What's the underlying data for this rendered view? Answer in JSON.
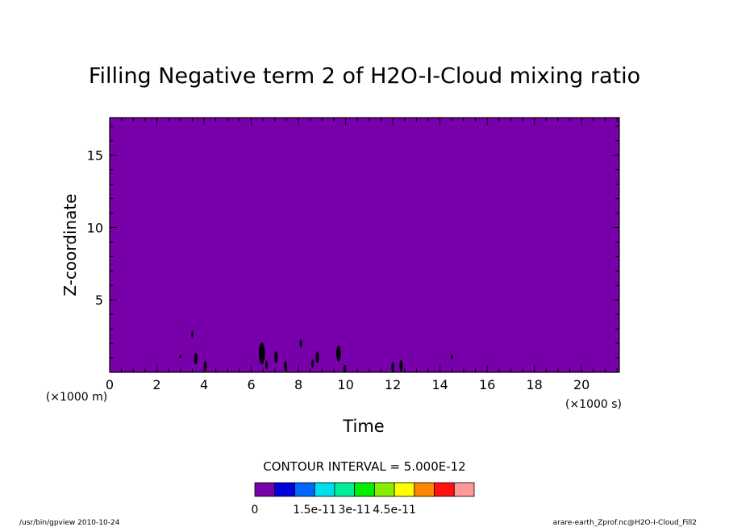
{
  "chart_data": {
    "type": "heatmap",
    "title": "Filling Negative term 2 of H2O-I-Cloud mixing ratio",
    "xlabel": "Time",
    "ylabel": "Z-coordinate",
    "x_unit": "(×1000 s)",
    "y_unit": "(×1000 m)",
    "xlim": [
      0,
      21.6
    ],
    "ylim": [
      0,
      17.6
    ],
    "x_ticks": [
      "0",
      "2",
      "4",
      "6",
      "8",
      "10",
      "12",
      "14",
      "16",
      "18",
      "20"
    ],
    "x_tick_values": [
      0,
      2,
      4,
      6,
      8,
      10,
      12,
      14,
      16,
      18,
      20
    ],
    "y_ticks": [
      "5",
      "10",
      "15"
    ],
    "y_tick_values": [
      5,
      10,
      15
    ],
    "background_color": "#7700aa",
    "field_value": 0,
    "features": [
      {
        "x": 3.0,
        "y": 1.1,
        "h": 0.25
      },
      {
        "x": 3.5,
        "y": 2.6,
        "h": 0.5
      },
      {
        "x": 3.65,
        "y": 0.95,
        "h": 0.8
      },
      {
        "x": 4.05,
        "y": 0.45,
        "h": 0.7
      },
      {
        "x": 6.45,
        "y": 1.3,
        "h": 1.5
      },
      {
        "x": 6.65,
        "y": 0.5,
        "h": 0.6
      },
      {
        "x": 7.05,
        "y": 1.05,
        "h": 0.8
      },
      {
        "x": 7.45,
        "y": 0.45,
        "h": 0.7
      },
      {
        "x": 8.1,
        "y": 2.0,
        "h": 0.6
      },
      {
        "x": 8.6,
        "y": 0.6,
        "h": 0.6
      },
      {
        "x": 8.8,
        "y": 1.05,
        "h": 0.8
      },
      {
        "x": 9.7,
        "y": 1.3,
        "h": 1.1
      },
      {
        "x": 9.95,
        "y": 0.25,
        "h": 0.5
      },
      {
        "x": 12.0,
        "y": 0.35,
        "h": 0.7
      },
      {
        "x": 12.35,
        "y": 0.45,
        "h": 0.8
      },
      {
        "x": 14.5,
        "y": 1.05,
        "h": 0.35
      }
    ],
    "contour_interval_text": "CONTOUR INTERVAL = 5.000E-12",
    "colorbar": {
      "colors": [
        "#7700aa",
        "#0000dd",
        "#0066ff",
        "#00ddee",
        "#00ee99",
        "#00ee00",
        "#88ee00",
        "#ffff00",
        "#ff8800",
        "#ff1111",
        "#ff9999"
      ],
      "labels": [
        "0",
        "1.5e-11",
        "3e-11",
        "4.5e-11"
      ],
      "label_positions": [
        0,
        3,
        5,
        7
      ]
    }
  },
  "footer": {
    "left": "/usr/bin/gpview  2010-10-24",
    "right": "arare-earth_Zprof.nc@H2O-I-Cloud_Fill2"
  }
}
